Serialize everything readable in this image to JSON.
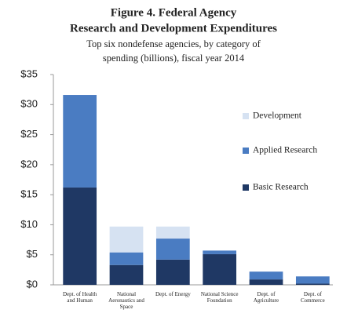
{
  "chart_data": {
    "type": "stacked-bar",
    "title": "Figure 4. Federal Agency",
    "title_line2": "Research and Development Expenditures",
    "subtitle": "Top six nondefense agencies, by category of",
    "subtitle_line2": "spending (billions), fiscal year 2014",
    "categories": [
      "Dept. of Health and Human",
      "National Aeronautics and Space",
      "Dept. of Energy",
      "National Science Foundation",
      "Dept. of Agriculture",
      "Dept. of Commerce"
    ],
    "series": [
      {
        "name": "Basic Research",
        "color": "#1f3864",
        "values": [
          16.2,
          3.3,
          4.2,
          5.1,
          0.9,
          0.2
        ]
      },
      {
        "name": "Applied Research",
        "color": "#4a7cc2",
        "values": [
          15.4,
          2.1,
          3.5,
          0.6,
          1.3,
          1.2
        ]
      },
      {
        "name": "Development",
        "color": "#d6e2f2",
        "values": [
          0,
          4.3,
          2.0,
          0,
          0,
          0
        ]
      }
    ],
    "ylim": [
      0,
      35
    ],
    "yticks": [
      {
        "value": 0,
        "label": "$0"
      },
      {
        "value": 5,
        "label": "$5"
      },
      {
        "value": 10,
        "label": "$10"
      },
      {
        "value": 15,
        "label": "$15"
      },
      {
        "value": 20,
        "label": "$20"
      },
      {
        "value": 25,
        "label": "$25"
      },
      {
        "value": 30,
        "label": "$30"
      },
      {
        "value": 35,
        "label": "$35"
      }
    ],
    "legend": "right"
  }
}
